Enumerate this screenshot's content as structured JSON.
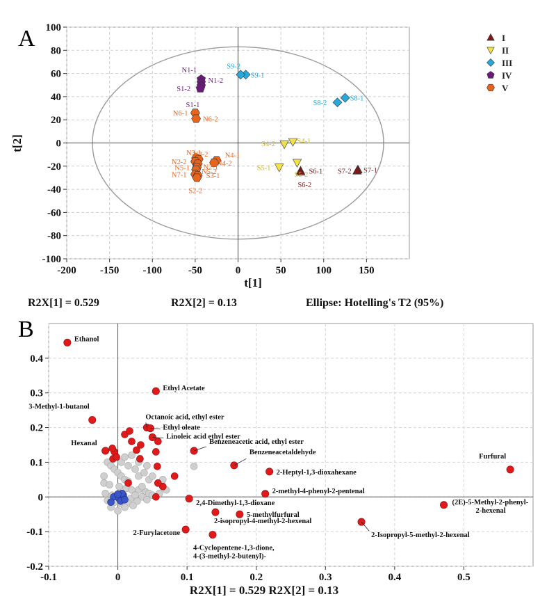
{
  "chart_data": [
    {
      "panel": "A",
      "type": "scatter",
      "xlabel": "t[1]",
      "ylabel": "t[2]",
      "xlim": [
        -200,
        200
      ],
      "ylim": [
        -100,
        100
      ],
      "xticks": [
        -200,
        -150,
        -100,
        -50,
        0,
        50,
        100,
        150
      ],
      "yticks": [
        -100,
        -80,
        -60,
        -40,
        -20,
        0,
        20,
        40,
        60,
        80,
        100
      ],
      "grid": true,
      "ellipse": {
        "cx": 0,
        "cy": 0,
        "rx": 170,
        "ry": 83
      },
      "legend_position": "top-right",
      "stats": [
        "R2X[1] = 0.529",
        "R2X[2] = 0.13",
        "Ellipse: Hotelling's T2 (95%)"
      ],
      "series": [
        {
          "name": "I",
          "color": "#7b1a1a",
          "marker": "triangle-up",
          "points": [
            {
              "x": 73,
              "y": -24,
              "label": "S6-1"
            },
            {
              "x": 73,
              "y": -25,
              "label": "S6-2"
            },
            {
              "x": 140,
              "y": -23,
              "label": "S7-1"
            },
            {
              "x": 139,
              "y": -24,
              "label": "S7-2"
            }
          ]
        },
        {
          "name": "II",
          "color": "#f2e24a",
          "marker": "triangle-down",
          "points": [
            {
              "x": 64,
              "y": 1,
              "label": "S4-1"
            },
            {
              "x": 54,
              "y": -1,
              "label": "S4-2"
            },
            {
              "x": 48,
              "y": -21,
              "label": "S5-1"
            },
            {
              "x": 69,
              "y": -17,
              "label": "S5-2"
            }
          ]
        },
        {
          "name": "III",
          "color": "#29a8db",
          "marker": "diamond",
          "points": [
            {
              "x": 125,
              "y": 39,
              "label": "S8-1"
            },
            {
              "x": 116,
              "y": 35,
              "label": "S8-2"
            },
            {
              "x": 9,
              "y": 59,
              "label": "S9-1"
            },
            {
              "x": 3,
              "y": 59,
              "label": "S9-2"
            }
          ]
        },
        {
          "name": "IV",
          "color": "#6b1a7a",
          "marker": "pentagon",
          "points": [
            {
              "x": -43,
              "y": 55,
              "label": "N1-1"
            },
            {
              "x": -43,
              "y": 52,
              "label": "N1-2"
            },
            {
              "x": -43,
              "y": 49,
              "label": "S1-1"
            },
            {
              "x": -44,
              "y": 47,
              "label": "S1-2"
            }
          ]
        },
        {
          "name": "V",
          "color": "#e8641c",
          "marker": "hexagon",
          "points": [
            {
              "x": -50,
              "y": 26,
              "label": "N6-1"
            },
            {
              "x": -49,
              "y": 21,
              "label": "N6-2"
            },
            {
              "x": -49,
              "y": -13,
              "label": "N3-1"
            },
            {
              "x": -46,
              "y": -14,
              "label": "N3-2"
            },
            {
              "x": -50,
              "y": -16,
              "label": "N2-2"
            },
            {
              "x": -47,
              "y": -18,
              "label": "N2-1"
            },
            {
              "x": -48,
              "y": -21,
              "label": "N5-1"
            },
            {
              "x": -49,
              "y": -23,
              "label": "N5-2"
            },
            {
              "x": -50,
              "y": -27,
              "label": "N7-1"
            },
            {
              "x": -47,
              "y": -28,
              "label": "S3-1"
            },
            {
              "x": -48,
              "y": -30,
              "label": "S2-2"
            },
            {
              "x": -25,
              "y": -15,
              "label": "N4-1"
            },
            {
              "x": -28,
              "y": -17,
              "label": "N4-2"
            }
          ]
        }
      ]
    },
    {
      "panel": "B",
      "type": "scatter",
      "xlabel": "R2X[1] = 0.529 R2X[2] = 0.13",
      "ylabel": "",
      "xlim": [
        -0.1,
        0.6
      ],
      "ylim": [
        -0.2,
        0.5
      ],
      "xticks": [
        -0.1,
        0,
        0.1,
        0.2,
        0.3,
        0.4,
        0.5
      ],
      "yticks": [
        -0.2,
        -0.1,
        0,
        0.1,
        0.2,
        0.3,
        0.4
      ],
      "grid": true,
      "labeled_points": [
        {
          "label": "Ethanol",
          "x": -0.073,
          "y": 0.445
        },
        {
          "label": "Ethyl Acetate",
          "x": 0.055,
          "y": 0.305
        },
        {
          "label": "3-Methyl-1-butanol",
          "x": -0.037,
          "y": 0.222
        },
        {
          "label": "Octanoic acid, ethyl ester",
          "x": 0.042,
          "y": 0.2
        },
        {
          "label": "Ethyl oleate",
          "x": 0.047,
          "y": 0.198
        },
        {
          "label": "Linoleic acid ethyl ester",
          "x": 0.05,
          "y": 0.172
        },
        {
          "label": "Hexanal",
          "x": -0.018,
          "y": 0.133
        },
        {
          "label": "Benzeneacetic acid, ethyl ester",
          "x": 0.11,
          "y": 0.133
        },
        {
          "label": "Benzeneacetaldehyde",
          "x": 0.168,
          "y": 0.091
        },
        {
          "label": "Furfural",
          "x": 0.567,
          "y": 0.079
        },
        {
          "label": "2-Heptyl-1,3-dioxahexane",
          "x": 0.219,
          "y": 0.073
        },
        {
          "label": "2-methyl-4-phenyl-2-pentenal",
          "x": 0.213,
          "y": 0.009
        },
        {
          "label": "2,4-Dimethyl-1,3-dioxane",
          "x": 0.103,
          "y": -0.005
        },
        {
          "label": "(2E)-5-Methyl-2-phenyl-2-hexenal",
          "x": 0.471,
          "y": -0.023
        },
        {
          "label": "5-methylfurfural",
          "x": 0.176,
          "y": -0.05
        },
        {
          "label": "2-isopropyl-4-methyl-2-hexenal",
          "x": 0.141,
          "y": -0.044
        },
        {
          "label": "2-Isopropyl-5-methyl-2-hexenal",
          "x": 0.352,
          "y": -0.072
        },
        {
          "label": "2-Furylacetone",
          "x": 0.098,
          "y": -0.094
        },
        {
          "label": "4-Cyclopentene-1,3-dione, 4-(3-methyl-2-butenyl)-",
          "x": 0.137,
          "y": -0.109
        }
      ],
      "red_points": [
        [
          0.01,
          0.18
        ],
        [
          0.017,
          0.19
        ],
        [
          0.033,
          0.15
        ],
        [
          0.02,
          0.16
        ],
        [
          0.058,
          0.16
        ],
        [
          0.055,
          0.13
        ],
        [
          -0.005,
          0.13
        ],
        [
          -0.008,
          0.14
        ],
        [
          0.027,
          0.135
        ],
        [
          0.057,
          0.088
        ],
        [
          0.082,
          0.06
        ],
        [
          0.065,
          0.03
        ],
        [
          0.015,
          0.04
        ],
        [
          0.058,
          0.04
        ],
        [
          -0.007,
          0.11
        ],
        [
          0.055,
          0.0
        ],
        [
          -0.002,
          0.115
        ],
        [
          0.032,
          0.11
        ]
      ],
      "grey_points": [
        [
          -0.015,
          0.1
        ],
        [
          -0.01,
          0.09
        ],
        [
          -0.005,
          0.08
        ],
        [
          0.0,
          0.07
        ],
        [
          0.005,
          0.06
        ],
        [
          0.01,
          0.05
        ],
        [
          0.015,
          0.045
        ],
        [
          -0.02,
          0.04
        ],
        [
          -0.012,
          0.035
        ],
        [
          0.002,
          0.03
        ],
        [
          0.012,
          0.025
        ],
        [
          0.02,
          0.02
        ],
        [
          0.03,
          0.02
        ],
        [
          0.04,
          0.015
        ],
        [
          0.045,
          0.01
        ],
        [
          -0.018,
          0.01
        ],
        [
          -0.008,
          0.005
        ],
        [
          0.0,
          0.0
        ],
        [
          0.008,
          -0.005
        ],
        [
          0.018,
          -0.005
        ],
        [
          0.025,
          0.005
        ],
        [
          0.035,
          0.0
        ],
        [
          0.05,
          0.005
        ],
        [
          -0.015,
          -0.01
        ],
        [
          -0.005,
          -0.015
        ],
        [
          0.005,
          -0.02
        ],
        [
          0.015,
          -0.018
        ],
        [
          0.028,
          -0.012
        ],
        [
          0.042,
          -0.008
        ],
        [
          0.06,
          0.01
        ],
        [
          -0.01,
          -0.03
        ],
        [
          0.0,
          -0.04
        ],
        [
          0.01,
          -0.03
        ],
        [
          0.022,
          -0.025
        ],
        [
          0.03,
          0.06
        ],
        [
          0.038,
          0.07
        ],
        [
          0.045,
          0.05
        ],
        [
          0.025,
          0.08
        ],
        [
          0.015,
          0.09
        ],
        [
          0.005,
          0.1
        ],
        [
          0.03,
          0.1
        ],
        [
          0.042,
          0.09
        ],
        [
          0.05,
          0.06
        ],
        [
          0.065,
          0.05
        ],
        [
          0.07,
          0.02
        ],
        [
          0.11,
          0.088
        ],
        [
          0.02,
          0.12
        ],
        [
          0.01,
          0.115
        ],
        [
          -0.02,
          0.06
        ],
        [
          0.035,
          0.03
        ]
      ],
      "blue_points": [
        [
          -0.006,
          0.0
        ],
        [
          0.002,
          -0.005
        ],
        [
          0.008,
          0.005
        ],
        [
          0.004,
          -0.012
        ],
        [
          -0.01,
          -0.015
        ],
        [
          0.01,
          -0.008
        ],
        [
          0.006,
          0.01
        ],
        [
          0.0,
          0.008
        ]
      ]
    }
  ]
}
